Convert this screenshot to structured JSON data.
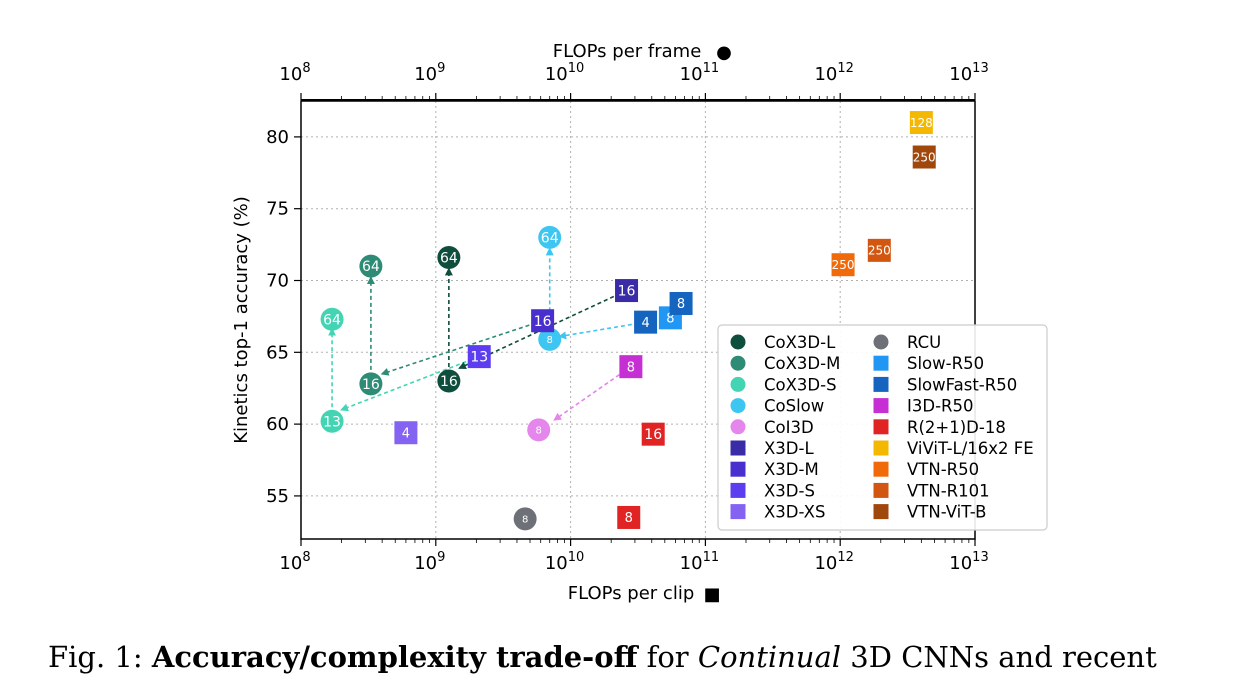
{
  "chart_data": {
    "type": "scatter",
    "x_scale": "log",
    "xlabel": "FLOPs per clip",
    "xlabel_marker": "■",
    "top_xlabel": "FLOPs per frame",
    "top_xlabel_marker": "●",
    "ylabel": "Kinetics top-1 accuracy (%)",
    "xlim": [
      100000000.0,
      10000000000000.0
    ],
    "ylim": [
      52,
      82.5
    ],
    "x_ticks": [
      {
        "base": "10",
        "exp": "8"
      },
      {
        "base": "10",
        "exp": "9"
      },
      {
        "base": "10",
        "exp": "10"
      },
      {
        "base": "10",
        "exp": "11"
      },
      {
        "base": "10",
        "exp": "12"
      },
      {
        "base": "10",
        "exp": "13"
      }
    ],
    "y_ticks": [
      "55",
      "60",
      "65",
      "70",
      "75",
      "80"
    ],
    "grid": true,
    "legend_position": "lower-right",
    "series": [
      {
        "name": "CoX3D-L",
        "marker": "circle",
        "color": "#0f4d3c",
        "points": [
          {
            "x": 1250000000.0,
            "y": 63.0,
            "label": "16"
          },
          {
            "x": 1250000000.0,
            "y": 71.6,
            "label": "64"
          }
        ]
      },
      {
        "name": "CoX3D-M",
        "marker": "circle",
        "color": "#2e8b76",
        "points": [
          {
            "x": 330000000.0,
            "y": 62.8,
            "label": "16"
          },
          {
            "x": 330000000.0,
            "y": 71.0,
            "label": "64"
          }
        ]
      },
      {
        "name": "CoX3D-S",
        "marker": "circle",
        "color": "#43d4b4",
        "points": [
          {
            "x": 170000000.0,
            "y": 60.2,
            "label": "13"
          },
          {
            "x": 170000000.0,
            "y": 67.3,
            "label": "64"
          }
        ]
      },
      {
        "name": "CoSlow",
        "marker": "circle",
        "color": "#3ec6f2",
        "points": [
          {
            "x": 7000000000.0,
            "y": 65.9,
            "label": "8"
          },
          {
            "x": 7000000000.0,
            "y": 73.0,
            "label": "64"
          }
        ]
      },
      {
        "name": "CoI3D",
        "marker": "circle",
        "color": "#e486ec",
        "points": [
          {
            "x": 5800000000.0,
            "y": 59.6,
            "label": "8"
          }
        ]
      },
      {
        "name": "X3D-L",
        "marker": "square",
        "color": "#3a2ba6",
        "points": [
          {
            "x": 26000000000.0,
            "y": 69.3,
            "label": "16"
          }
        ]
      },
      {
        "name": "X3D-M",
        "marker": "square",
        "color": "#4a2fcf",
        "points": [
          {
            "x": 6200000000.0,
            "y": 67.2,
            "label": "16"
          }
        ]
      },
      {
        "name": "X3D-S",
        "marker": "square",
        "color": "#5c3ef0",
        "points": [
          {
            "x": 2100000000.0,
            "y": 64.7,
            "label": "13"
          }
        ]
      },
      {
        "name": "X3D-XS",
        "marker": "square",
        "color": "#8463f2",
        "points": [
          {
            "x": 600000000.0,
            "y": 59.4,
            "label": "4"
          }
        ]
      },
      {
        "name": "RCU",
        "marker": "circle",
        "color": "#6e7077",
        "points": [
          {
            "x": 4600000000.0,
            "y": 53.4,
            "label": "8"
          }
        ]
      },
      {
        "name": "Slow-R50",
        "marker": "square",
        "color": "#2196f3",
        "points": [
          {
            "x": 55000000000.0,
            "y": 67.4,
            "label": "8"
          }
        ]
      },
      {
        "name": "SlowFast-R50",
        "marker": "square",
        "color": "#1565c0",
        "points": [
          {
            "x": 36000000000.0,
            "y": 67.1,
            "label": "4"
          },
          {
            "x": 66000000000.0,
            "y": 68.4,
            "label": "8"
          }
        ]
      },
      {
        "name": "I3D-R50",
        "marker": "square",
        "color": "#c62fd4",
        "points": [
          {
            "x": 28000000000.0,
            "y": 64.0,
            "label": "8"
          }
        ]
      },
      {
        "name": "R(2+1)D-18",
        "marker": "square",
        "color": "#e02424",
        "points": [
          {
            "x": 27000000000.0,
            "y": 53.5,
            "label": "8"
          },
          {
            "x": 41000000000.0,
            "y": 59.3,
            "label": "16"
          }
        ]
      },
      {
        "name": "ViViT-L/16x2 FE",
        "marker": "square",
        "color": "#f5b800",
        "points": [
          {
            "x": 4000000000000.0,
            "y": 81.0,
            "label": "128"
          }
        ]
      },
      {
        "name": "VTN-R50",
        "marker": "square",
        "color": "#f06a0a",
        "points": [
          {
            "x": 1050000000000.0,
            "y": 71.1,
            "label": "250"
          }
        ]
      },
      {
        "name": "VTN-R101",
        "marker": "square",
        "color": "#d2560f",
        "points": [
          {
            "x": 1950000000000.0,
            "y": 72.1,
            "label": "250"
          }
        ]
      },
      {
        "name": "VTN-ViT-B",
        "marker": "square",
        "color": "#a0470c",
        "points": [
          {
            "x": 4200000000000.0,
            "y": 78.6,
            "label": "250"
          }
        ]
      }
    ],
    "arrows": [
      {
        "from": {
          "x": 170000000.0,
          "y": 60.2
        },
        "to": {
          "x": 170000000.0,
          "y": 66.6
        },
        "color": "#43d4b4"
      },
      {
        "from": {
          "x": 330000000.0,
          "y": 62.8
        },
        "to": {
          "x": 330000000.0,
          "y": 70.2
        },
        "color": "#2e8b76"
      },
      {
        "from": {
          "x": 1250000000.0,
          "y": 63.0
        },
        "to": {
          "x": 1250000000.0,
          "y": 70.8
        },
        "color": "#0f4d3c"
      },
      {
        "from": {
          "x": 7000000000.0,
          "y": 65.9
        },
        "to": {
          "x": 7000000000.0,
          "y": 72.2
        },
        "color": "#3ec6f2"
      },
      {
        "from": {
          "x": 2100000000.0,
          "y": 64.7
        },
        "to": {
          "x": 200000000.0,
          "y": 61.0
        },
        "color": "#43d4b4"
      },
      {
        "from": {
          "x": 6200000000.0,
          "y": 67.2
        },
        "to": {
          "x": 400000000.0,
          "y": 63.5
        },
        "color": "#2e8b76"
      },
      {
        "from": {
          "x": 26000000000.0,
          "y": 69.3
        },
        "to": {
          "x": 1500000000.0,
          "y": 63.9
        },
        "color": "#0f4d3c"
      },
      {
        "from": {
          "x": 36000000000.0,
          "y": 67.1
        },
        "to": {
          "x": 8300000000.0,
          "y": 66.1
        },
        "color": "#3ec6f2"
      },
      {
        "from": {
          "x": 28000000000.0,
          "y": 64.0
        },
        "to": {
          "x": 7600000000.0,
          "y": 60.3
        },
        "color": "#e486ec"
      }
    ]
  },
  "caption": {
    "prefix": "Fig. 1: ",
    "bold": "Accuracy/complexity trade-off",
    "middle": " for ",
    "italic": "Continual",
    "suffix": " 3D CNNs and recent"
  }
}
